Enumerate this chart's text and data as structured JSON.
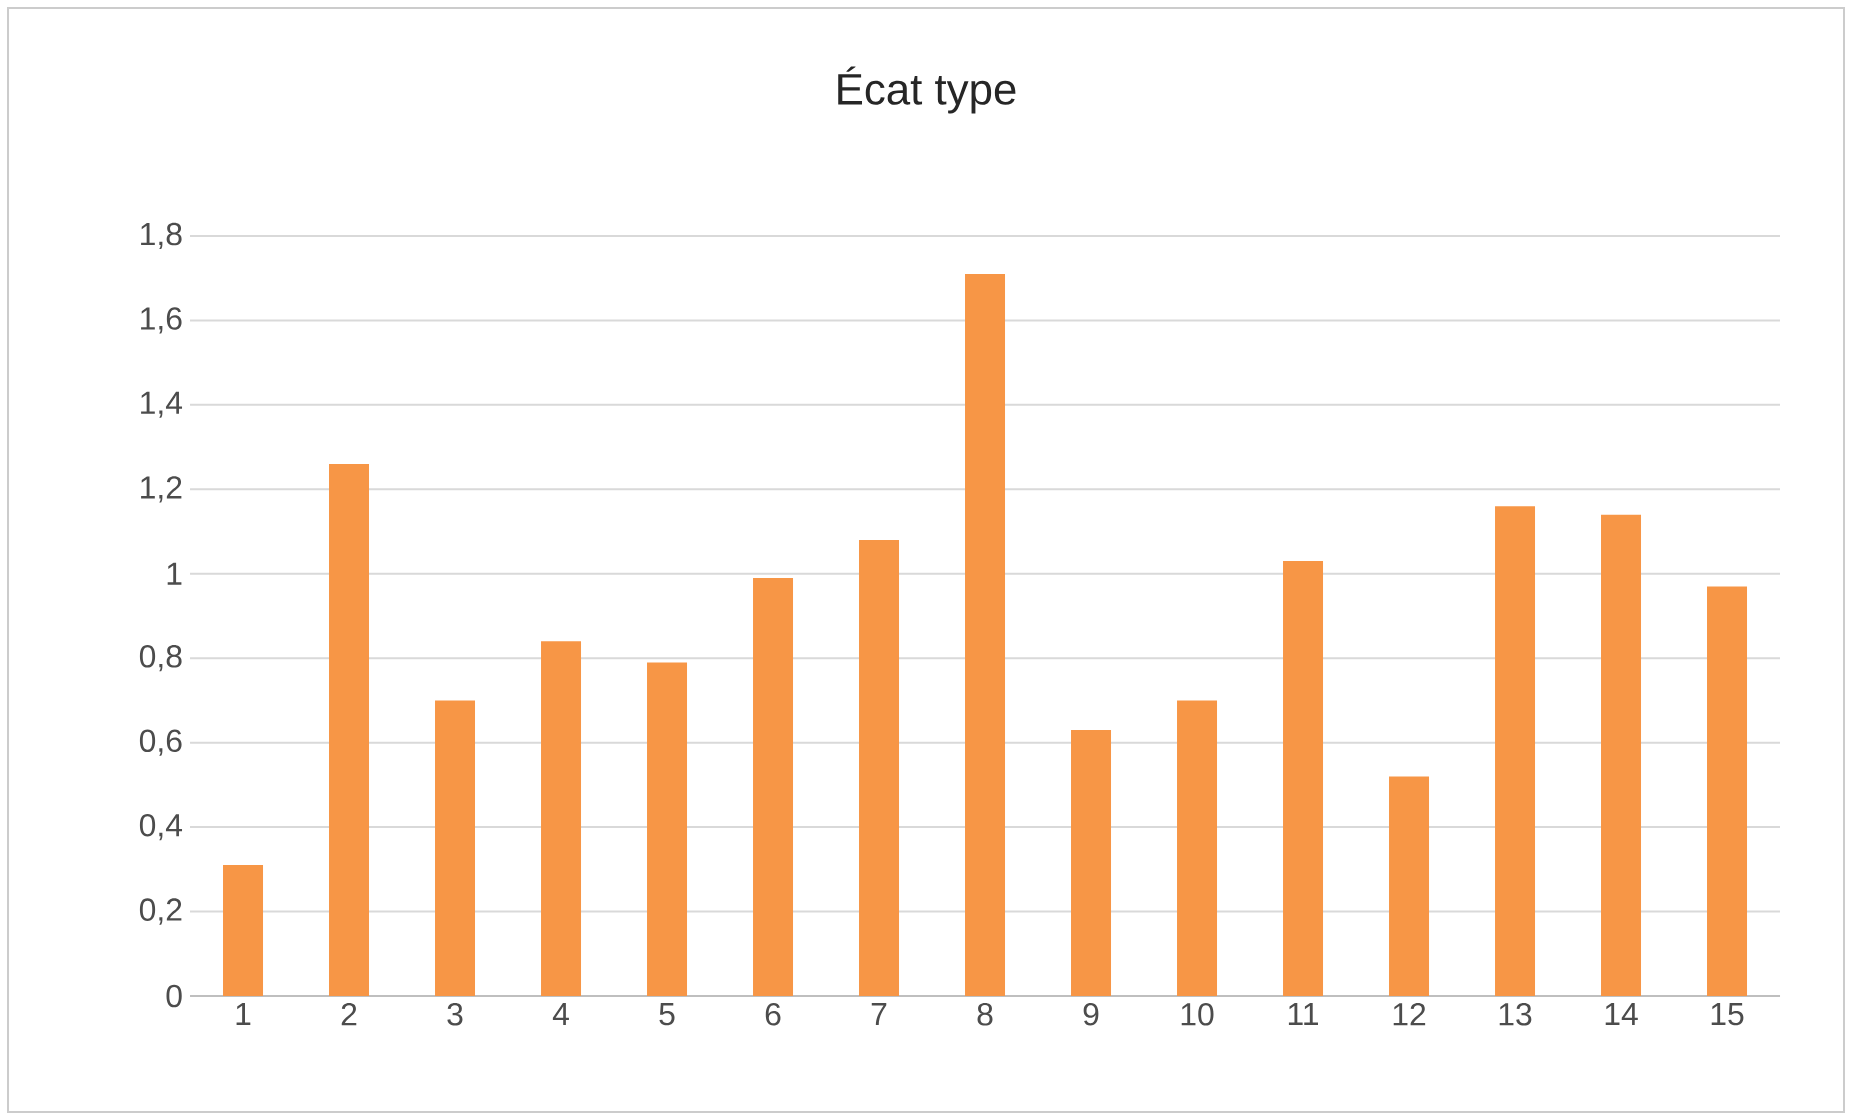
{
  "chart_data": {
    "type": "bar",
    "title": "Écat type",
    "categories": [
      "1",
      "2",
      "3",
      "4",
      "5",
      "6",
      "7",
      "8",
      "9",
      "10",
      "11",
      "12",
      "13",
      "14",
      "15"
    ],
    "values": [
      0.31,
      1.26,
      0.7,
      0.84,
      0.79,
      0.99,
      1.08,
      1.71,
      0.63,
      0.7,
      1.03,
      0.52,
      1.16,
      1.14,
      0.97
    ],
    "color": "#f79646",
    "ylim": [
      0,
      1.8
    ],
    "yticks": [
      0,
      {
        "value": 0.2,
        "label": "0,2"
      },
      {
        "value": 0.4,
        "label": "0,4"
      },
      {
        "value": 0.6,
        "label": "0,6"
      },
      {
        "value": 0.8,
        "label": "0,8"
      },
      1,
      {
        "value": 1.2,
        "label": "1,2"
      },
      {
        "value": 1.4,
        "label": "1,4"
      },
      {
        "value": 1.6,
        "label": "1,6"
      },
      {
        "value": 1.8,
        "label": "1,8"
      }
    ],
    "grid": "y"
  }
}
